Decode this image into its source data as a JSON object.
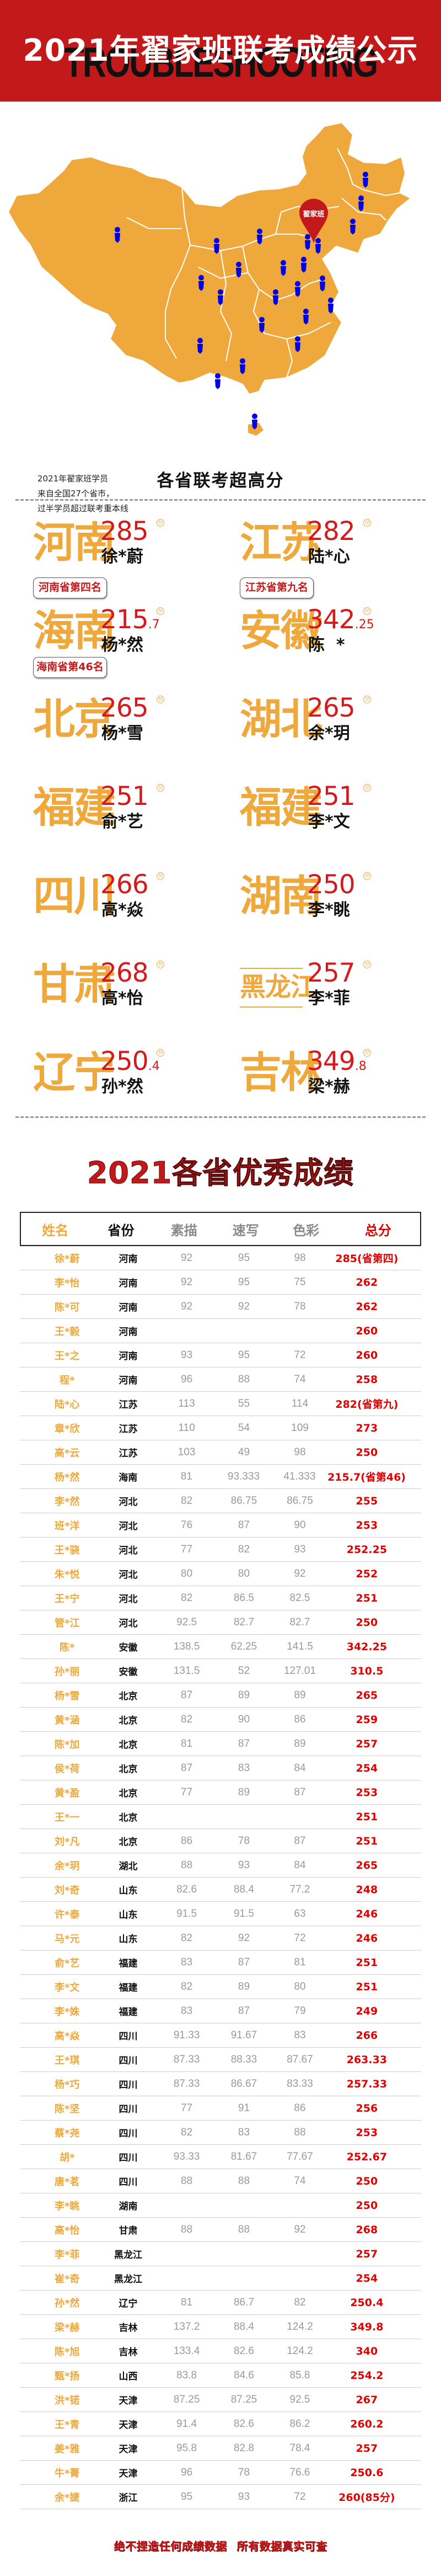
{
  "header": {
    "title": "2021年翟家班联考成绩公示",
    "background_word": "TROUBLESHOOTING"
  },
  "map": {
    "pin_logo": "翟家班",
    "pin_icon": "location-pin-icon",
    "student_marker_icon": "person-marker-icon",
    "caption": [
      "2021年翟家班学员",
      "来自全国27个省市，",
      "过半学员超过联考重本线"
    ],
    "colors": {
      "land": "#eea83c",
      "border": "#ffffff",
      "marker": "#0000e6",
      "pin": "#c4191a"
    }
  },
  "highlights": {
    "title": "各省联考超高分",
    "unit": "分",
    "cards": [
      {
        "province": "河南",
        "score": "285",
        "decimal": "",
        "name": "徐*蔚",
        "rank": "河南省第四名"
      },
      {
        "province": "江苏",
        "score": "282",
        "decimal": "",
        "name": "陆*心",
        "rank": "江苏省第九名"
      },
      {
        "province": "海南",
        "score": "215",
        "decimal": ".7",
        "name": "杨*然",
        "rank": "海南省第46名"
      },
      {
        "province": "安徽",
        "score": "342",
        "decimal": ".25",
        "name": "陈  *",
        "rank": ""
      },
      {
        "province": "北京",
        "score": "265",
        "decimal": "",
        "name": "杨*雪",
        "rank": ""
      },
      {
        "province": "湖北",
        "score": "265",
        "decimal": "",
        "name": "余*玥",
        "rank": ""
      },
      {
        "province": "福建",
        "score": "251",
        "decimal": "",
        "name": "俞*艺",
        "rank": ""
      },
      {
        "province": "福建",
        "score": "251",
        "decimal": "",
        "name": "李*文",
        "rank": ""
      },
      {
        "province": "四川",
        "score": "266",
        "decimal": "",
        "name": "高*焱",
        "rank": ""
      },
      {
        "province": "湖南",
        "score": "250",
        "decimal": "",
        "name": "李*眺",
        "rank": ""
      },
      {
        "province": "甘肃",
        "score": "268",
        "decimal": "",
        "name": "高*怡",
        "rank": ""
      },
      {
        "province": "黑龙江",
        "score": "257",
        "decimal": "",
        "name": "李*菲",
        "rank": ""
      },
      {
        "province": "辽宁",
        "score": "250",
        "decimal": ".4",
        "name": "孙*然",
        "rank": ""
      },
      {
        "province": "吉林",
        "score": "349",
        "decimal": ".8",
        "name": "梁*赫",
        "rank": ""
      }
    ]
  },
  "results": {
    "title": "2021各省优秀成绩",
    "columns": [
      "姓名",
      "省份",
      "素描",
      "速写",
      "色彩",
      "总分"
    ],
    "rows": [
      [
        "徐*蔚",
        "河南",
        "92",
        "95",
        "98",
        "285(省第四)"
      ],
      [
        "李*怡",
        "河南",
        "92",
        "95",
        "75",
        "262"
      ],
      [
        "陈*可",
        "河南",
        "92",
        "92",
        "78",
        "262"
      ],
      [
        "王*毅",
        "河南",
        "",
        "",
        "",
        "260"
      ],
      [
        "王*之",
        "河南",
        "93",
        "95",
        "72",
        "260"
      ],
      [
        "程*",
        "河南",
        "96",
        "88",
        "74",
        "258"
      ],
      [
        "陆*心",
        "江苏",
        "113",
        "55",
        "114",
        "282(省第九)"
      ],
      [
        "章*欣",
        "江苏",
        "110",
        "54",
        "109",
        "273"
      ],
      [
        "高*云",
        "江苏",
        "103",
        "49",
        "98",
        "250"
      ],
      [
        "杨*然",
        "海南",
        "81",
        "93.333",
        "41.333",
        "215.7(省第46)"
      ],
      [
        "李*然",
        "河北",
        "82",
        "86.75",
        "86.75",
        "255"
      ],
      [
        "班*洋",
        "河北",
        "76",
        "87",
        "90",
        "253"
      ],
      [
        "王*骁",
        "河北",
        "77",
        "82",
        "93",
        "252.25"
      ],
      [
        "朱*悦",
        "河北",
        "80",
        "80",
        "92",
        "252"
      ],
      [
        "王*宁",
        "河北",
        "82",
        "86.5",
        "82.5",
        "251"
      ],
      [
        "管*江",
        "河北",
        "92.5",
        "82.7",
        "82.7",
        "250"
      ],
      [
        "陈*",
        "安徽",
        "138.5",
        "62.25",
        "141.5",
        "342.25"
      ],
      [
        "孙*丽",
        "安徽",
        "131.5",
        "52",
        "127.01",
        "310.5"
      ],
      [
        "杨*雪",
        "北京",
        "87",
        "89",
        "89",
        "265"
      ],
      [
        "黄*涵",
        "北京",
        "82",
        "90",
        "86",
        "259"
      ],
      [
        "陈*加",
        "北京",
        "81",
        "87",
        "89",
        "257"
      ],
      [
        "侯*荷",
        "北京",
        "87",
        "83",
        "84",
        "254"
      ],
      [
        "黄*盈",
        "北京",
        "77",
        "89",
        "87",
        "253"
      ],
      [
        "王*一",
        "北京",
        "",
        "",
        "",
        "251"
      ],
      [
        "刘*凡",
        "北京",
        "86",
        "78",
        "87",
        "251"
      ],
      [
        "余*玥",
        "湖北",
        "88",
        "93",
        "84",
        "265"
      ],
      [
        "刘*奇",
        "山东",
        "82.6",
        "88.4",
        "77.2",
        "248"
      ],
      [
        "许*泰",
        "山东",
        "91.5",
        "91.5",
        "63",
        "246"
      ],
      [
        "马*元",
        "山东",
        "82",
        "92",
        "72",
        "246"
      ],
      [
        "俞*艺",
        "福建",
        "83",
        "87",
        "81",
        "251"
      ],
      [
        "李*文",
        "福建",
        "82",
        "89",
        "80",
        "251"
      ],
      [
        "李*姝",
        "福建",
        "83",
        "87",
        "79",
        "249"
      ],
      [
        "高*焱",
        "四川",
        "91.33",
        "91.67",
        "83",
        "266"
      ],
      [
        "王*琪",
        "四川",
        "87.33",
        "88.33",
        "87.67",
        "263.33"
      ],
      [
        "杨*巧",
        "四川",
        "87.33",
        "86.67",
        "83.33",
        "257.33"
      ],
      [
        "陈*坚",
        "四川",
        "77",
        "91",
        "86",
        "256"
      ],
      [
        "蔡*尧",
        "四川",
        "82",
        "83",
        "88",
        "253"
      ],
      [
        "胡*",
        "四川",
        "93.33",
        "81.67",
        "77.67",
        "252.67"
      ],
      [
        "唐*茗",
        "四川",
        "88",
        "88",
        "74",
        "250"
      ],
      [
        "李*眺",
        "湖南",
        "",
        "",
        "",
        "250"
      ],
      [
        "高*怡",
        "甘肃",
        "88",
        "88",
        "92",
        "268"
      ],
      [
        "李*菲",
        "黑龙江",
        "",
        "",
        "",
        "257"
      ],
      [
        "崔*奇",
        "黑龙江",
        "",
        "",
        "",
        "254"
      ],
      [
        "孙*然",
        "辽宁",
        "81",
        "86.7",
        "82",
        "250.4"
      ],
      [
        "梁*赫",
        "吉林",
        "137.2",
        "88.4",
        "124.2",
        "349.8"
      ],
      [
        "陈*旭",
        "吉林",
        "133.4",
        "82.6",
        "124.2",
        "340"
      ],
      [
        "甄*扬",
        "山西",
        "83.8",
        "84.6",
        "85.8",
        "254.2"
      ],
      [
        "洪*锘",
        "天津",
        "87.25",
        "87.25",
        "92.5",
        "267"
      ],
      [
        "王*青",
        "天津",
        "91.4",
        "82.6",
        "86.2",
        "260.2"
      ],
      [
        "姜*雅",
        "天津",
        "95.8",
        "82.8",
        "78.4",
        "257"
      ],
      [
        "牛*菁",
        "天津",
        "96",
        "78",
        "76.6",
        "250.6"
      ],
      [
        "余*婕",
        "浙江",
        "95",
        "93",
        "72",
        "260(85分)"
      ]
    ]
  },
  "footer": {
    "note_left": "绝不捏造任何成绩数据",
    "note_right": "所有数据真实可查"
  },
  "colors": {
    "brand_red": "#c4191a",
    "accent_orange": "#eea83c",
    "score_red": "#e00000",
    "muted_gray": "#9a9a9a"
  }
}
